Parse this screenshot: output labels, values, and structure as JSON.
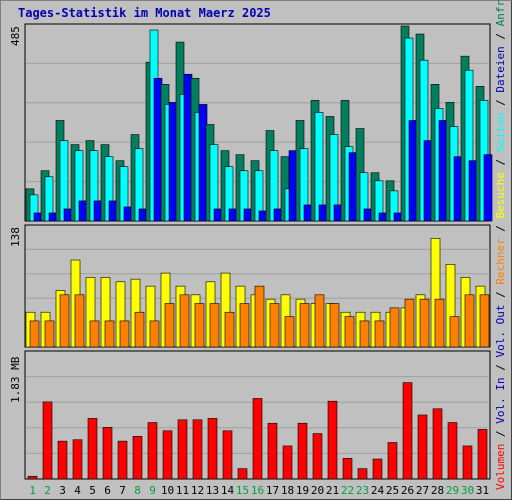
{
  "title": "Tages-Statistik im Monat Maerz 2025",
  "chart_data": [
    {
      "type": "bar",
      "title": "Tages-Statistik im Monat Maerz 2025",
      "ymax_label": "485",
      "ylim": [
        0,
        485
      ],
      "categories": [
        "1",
        "2",
        "3",
        "4",
        "5",
        "6",
        "7",
        "8",
        "9",
        "10",
        "11",
        "12",
        "13",
        "14",
        "15",
        "16",
        "17",
        "18",
        "19",
        "20",
        "21",
        "22",
        "23",
        "24",
        "25",
        "26",
        "27",
        "28",
        "29",
        "30",
        "31"
      ],
      "weekend_days": [
        "1",
        "2",
        "8",
        "9",
        "15",
        "16",
        "22",
        "23",
        "29",
        "30"
      ],
      "series": [
        {
          "name": "Anfragen",
          "color": "#007F5F",
          "values": [
            80,
            125,
            250,
            190,
            200,
            190,
            150,
            215,
            395,
            340,
            445,
            355,
            240,
            175,
            165,
            150,
            225,
            160,
            250,
            300,
            260,
            300,
            230,
            120,
            100,
            485,
            465,
            340,
            295,
            410,
            335
          ]
        },
        {
          "name": "Dateien",
          "color": "#00FFFF",
          "values": [
            65,
            110,
            200,
            175,
            175,
            160,
            135,
            180,
            475,
            290,
            315,
            270,
            190,
            135,
            125,
            125,
            175,
            80,
            180,
            270,
            215,
            185,
            120,
            100,
            75,
            455,
            400,
            280,
            235,
            375,
            300
          ]
        },
        {
          "name": "Seiten",
          "color": "#0000FF",
          "values": [
            20,
            20,
            30,
            50,
            50,
            50,
            35,
            30,
            355,
            295,
            365,
            290,
            30,
            30,
            30,
            25,
            30,
            175,
            40,
            40,
            40,
            170,
            30,
            20,
            20,
            250,
            200,
            250,
            160,
            150,
            165
          ]
        }
      ]
    },
    {
      "type": "bar",
      "ymax_label": "138",
      "ylim": [
        0,
        138
      ],
      "series": [
        {
          "name": "Besuche",
          "color": "#FFFF00",
          "values": [
            40,
            40,
            65,
            100,
            80,
            80,
            75,
            78,
            70,
            85,
            70,
            60,
            75,
            85,
            70,
            60,
            55,
            60,
            55,
            50,
            50,
            40,
            40,
            40,
            40,
            45,
            60,
            125,
            95,
            80,
            70
          ]
        },
        {
          "name": "Rechner",
          "color": "#FF8000",
          "values": [
            30,
            30,
            60,
            60,
            30,
            30,
            30,
            40,
            30,
            50,
            60,
            50,
            50,
            40,
            50,
            70,
            50,
            35,
            50,
            60,
            50,
            35,
            30,
            30,
            45,
            55,
            55,
            55,
            35,
            60,
            60
          ]
        }
      ],
      "series_order_hint": "day-indexed"
    },
    {
      "type": "bar",
      "ymax_label": "1.83 MB",
      "ylim": [
        0,
        1.83
      ],
      "series": [
        {
          "name": "Volumen",
          "color": "#FF0000",
          "values": [
            0.04,
            1.12,
            0.55,
            0.57,
            0.88,
            0.75,
            0.55,
            0.62,
            0.82,
            0.7,
            0.86,
            0.86,
            0.88,
            0.7,
            0.15,
            1.17,
            0.81,
            0.48,
            0.81,
            0.66,
            1.13,
            0.3,
            0.15,
            0.29,
            0.53,
            1.4,
            0.93,
            1.02,
            0.82,
            0.48,
            0.72
          ]
        }
      ]
    }
  ],
  "right_legend": [
    {
      "text": "Volumen",
      "color": "#FF0000"
    },
    {
      "text": " / ",
      "color": "#000000"
    },
    {
      "text": "Vol. In",
      "color": "#0000B0"
    },
    {
      "text": " / ",
      "color": "#000000"
    },
    {
      "text": "Vol. Out",
      "color": "#0000B0"
    },
    {
      "text": " / ",
      "color": "#000000"
    },
    {
      "text": "Rechner",
      "color": "#FF8000"
    },
    {
      "text": " / ",
      "color": "#000000"
    },
    {
      "text": "Besuche",
      "color": "#FFFF00"
    },
    {
      "text": " / ",
      "color": "#000000"
    },
    {
      "text": "Seiten",
      "color": "#00FFFF"
    },
    {
      "text": " / ",
      "color": "#000000"
    },
    {
      "text": "Dateien",
      "color": "#0000B0"
    },
    {
      "text": " / ",
      "color": "#000000"
    },
    {
      "text": "Anfragen",
      "color": "#007F5F"
    }
  ],
  "colors": {
    "weekday_label": "#000000",
    "weekend_label": "#00A040",
    "background": "#C0C0C0",
    "gridline": "#A0A0A0"
  }
}
